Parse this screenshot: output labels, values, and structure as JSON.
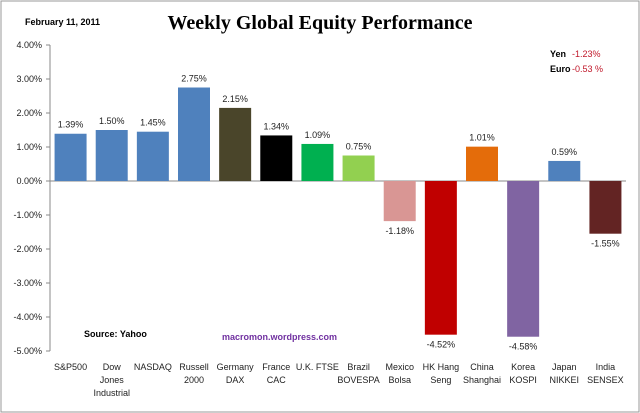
{
  "chart_data": {
    "type": "bar",
    "title": "Weekly Global Equity Performance",
    "date": "February 11, 2011",
    "source": "Source:  Yahoo",
    "watermark": "macromon.wordpress.com",
    "currencies": [
      {
        "name": "Yen",
        "value": "-1.23%"
      },
      {
        "name": "Euro",
        "value": "-0.53 %"
      }
    ],
    "ylim": [
      -5,
      4
    ],
    "yticks": [
      4,
      3,
      2,
      1,
      0,
      -1,
      -2,
      -3,
      -4,
      -5
    ],
    "ytick_labels": [
      "4.00%",
      "3.00%",
      "2.00%",
      "1.00%",
      "0.00%",
      "-1.00%",
      "-2.00%",
      "-3.00%",
      "-4.00%",
      "-5.00%"
    ],
    "categories": [
      [
        "S&P500"
      ],
      [
        "Dow",
        "Jones",
        "Industrial"
      ],
      [
        "NASDAQ"
      ],
      [
        "Russell",
        "2000"
      ],
      [
        "Germany",
        "DAX"
      ],
      [
        "France",
        "CAC"
      ],
      [
        "U.K. FTSE"
      ],
      [
        "Brazil",
        "BOVESPA"
      ],
      [
        "Mexico",
        "Bolsa"
      ],
      [
        "HK Hang",
        "Seng"
      ],
      [
        "China",
        "Shanghai"
      ],
      [
        "Korea",
        "KOSPI"
      ],
      [
        "Japan",
        "NIKKEI"
      ],
      [
        "India",
        "SENSEX"
      ]
    ],
    "values": [
      1.39,
      1.5,
      1.45,
      2.75,
      2.15,
      1.34,
      1.09,
      0.75,
      -1.18,
      -4.52,
      1.01,
      -4.58,
      0.59,
      -1.55
    ],
    "labels": [
      "1.39%",
      "1.50%",
      "1.45%",
      "2.75%",
      "2.15%",
      "1.34%",
      "1.09%",
      "0.75%",
      "-1.18%",
      "-4.52%",
      "1.01%",
      "-4.58%",
      "0.59%",
      "-1.55%"
    ],
    "colors": [
      "#4f81bd",
      "#4f81bd",
      "#4f81bd",
      "#4f81bd",
      "#4a452a",
      "#000000",
      "#00b050",
      "#92d050",
      "#d99694",
      "#c00000",
      "#e46c0a",
      "#8064a2",
      "#4f81bd",
      "#632423"
    ],
    "currency_color": "#c0182a",
    "watermark_color": "#7030a0"
  }
}
